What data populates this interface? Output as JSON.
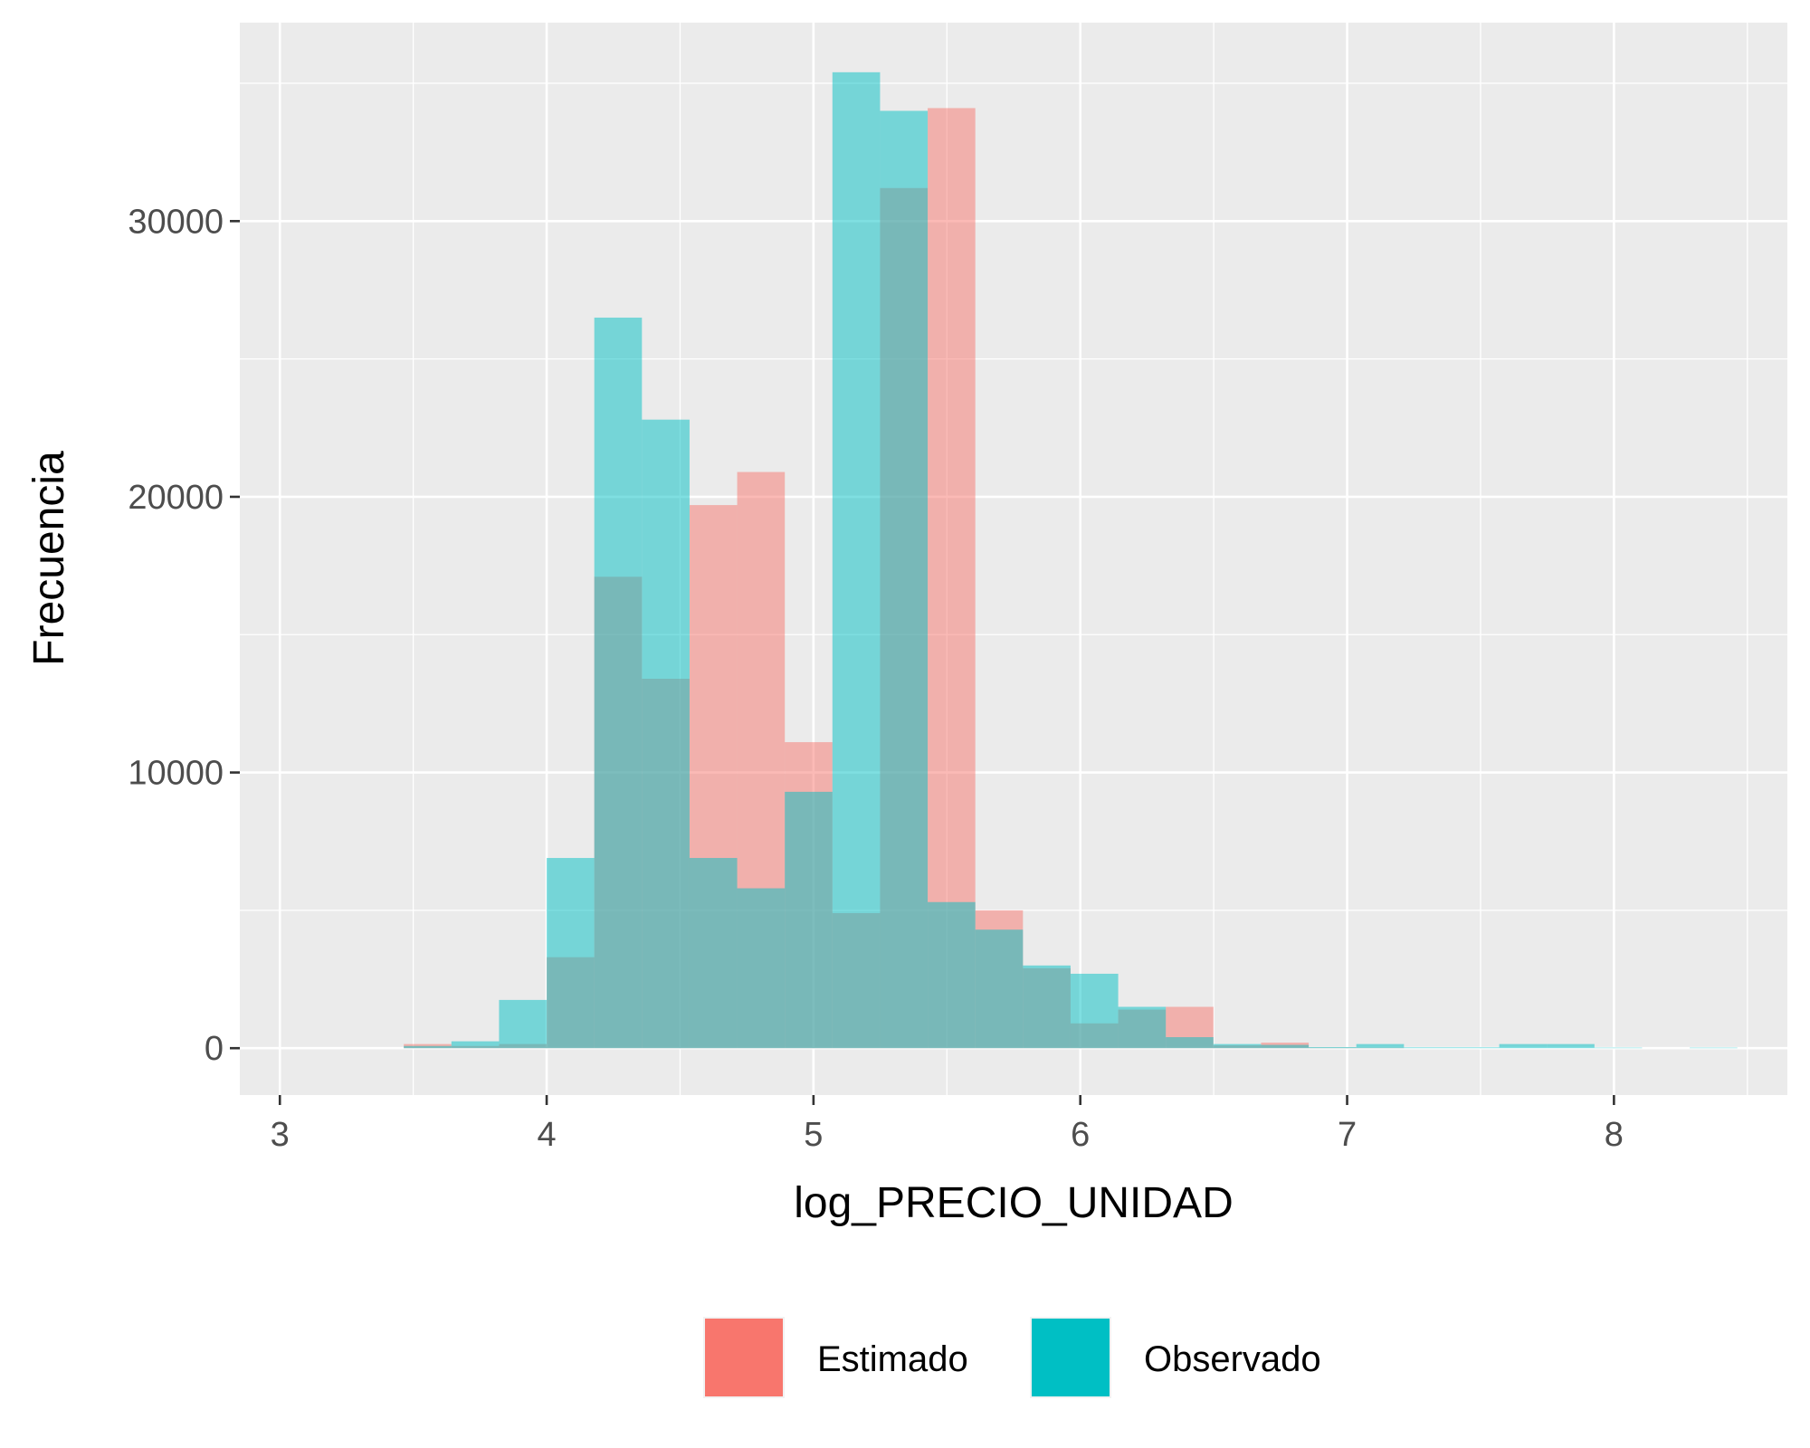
{
  "chart_data": {
    "type": "histogram",
    "xlabel": "log_PRECIO_UNIDAD",
    "ylabel": "Frecuencia",
    "xlim": [
      2.85,
      8.65
    ],
    "ylim": [
      -1700,
      37200
    ],
    "x_ticks": [
      3,
      4,
      5,
      6,
      7,
      8
    ],
    "y_ticks": [
      0,
      10000,
      20000,
      30000
    ],
    "x_tick_labels": [
      "3",
      "4",
      "5",
      "6",
      "7",
      "8"
    ],
    "y_tick_labels": [
      "0",
      "10000",
      "20000",
      "30000"
    ],
    "grid": true,
    "legend_position": "bottom",
    "bin_width": 0.1785,
    "series": [
      {
        "name": "Estimado",
        "color": "#F8766D",
        "bins": [
          {
            "x0": 3.4645,
            "x1": 3.643,
            "y": 150
          },
          {
            "x0": 3.643,
            "x1": 3.8215,
            "y": 80
          },
          {
            "x0": 3.8215,
            "x1": 4.0,
            "y": 150
          },
          {
            "x0": 4.0,
            "x1": 4.1785,
            "y": 3300
          },
          {
            "x0": 4.1785,
            "x1": 4.357,
            "y": 17100
          },
          {
            "x0": 4.357,
            "x1": 4.5355,
            "y": 13400
          },
          {
            "x0": 4.5355,
            "x1": 4.714,
            "y": 19700
          },
          {
            "x0": 4.714,
            "x1": 4.8925,
            "y": 20900
          },
          {
            "x0": 4.8925,
            "x1": 5.071,
            "y": 11100
          },
          {
            "x0": 5.071,
            "x1": 5.2495,
            "y": 4900
          },
          {
            "x0": 5.2495,
            "x1": 5.428,
            "y": 31200
          },
          {
            "x0": 5.428,
            "x1": 5.6065,
            "y": 34100
          },
          {
            "x0": 5.6065,
            "x1": 5.785,
            "y": 5000
          },
          {
            "x0": 5.785,
            "x1": 5.9635,
            "y": 2900
          },
          {
            "x0": 5.9635,
            "x1": 6.142,
            "y": 900
          },
          {
            "x0": 6.142,
            "x1": 6.3205,
            "y": 1400
          },
          {
            "x0": 6.3205,
            "x1": 6.499,
            "y": 1500
          },
          {
            "x0": 6.499,
            "x1": 6.6775,
            "y": 100
          },
          {
            "x0": 6.6775,
            "x1": 6.856,
            "y": 200
          },
          {
            "x0": 6.856,
            "x1": 7.0345,
            "y": 20
          },
          {
            "x0": 7.0345,
            "x1": 7.213,
            "y": 20
          }
        ]
      },
      {
        "name": "Observado",
        "color": "#00BFC4",
        "bins": [
          {
            "x0": 3.4645,
            "x1": 3.643,
            "y": 80
          },
          {
            "x0": 3.643,
            "x1": 3.8215,
            "y": 250
          },
          {
            "x0": 3.8215,
            "x1": 4.0,
            "y": 1750
          },
          {
            "x0": 4.0,
            "x1": 4.1785,
            "y": 6900
          },
          {
            "x0": 4.1785,
            "x1": 4.357,
            "y": 26500
          },
          {
            "x0": 4.357,
            "x1": 4.5355,
            "y": 22800
          },
          {
            "x0": 4.5355,
            "x1": 4.714,
            "y": 6900
          },
          {
            "x0": 4.714,
            "x1": 4.8925,
            "y": 5800
          },
          {
            "x0": 4.8925,
            "x1": 5.071,
            "y": 9300
          },
          {
            "x0": 5.071,
            "x1": 5.2495,
            "y": 35400
          },
          {
            "x0": 5.2495,
            "x1": 5.428,
            "y": 34000
          },
          {
            "x0": 5.428,
            "x1": 5.6065,
            "y": 5300
          },
          {
            "x0": 5.6065,
            "x1": 5.785,
            "y": 4300
          },
          {
            "x0": 5.785,
            "x1": 5.9635,
            "y": 3000
          },
          {
            "x0": 5.9635,
            "x1": 6.142,
            "y": 2700
          },
          {
            "x0": 6.142,
            "x1": 6.3205,
            "y": 1500
          },
          {
            "x0": 6.3205,
            "x1": 6.499,
            "y": 400
          },
          {
            "x0": 6.499,
            "x1": 6.6775,
            "y": 150
          },
          {
            "x0": 6.6775,
            "x1": 6.856,
            "y": 120
          },
          {
            "x0": 6.856,
            "x1": 7.0345,
            "y": 40
          },
          {
            "x0": 7.0345,
            "x1": 7.213,
            "y": 150
          },
          {
            "x0": 7.213,
            "x1": 7.3915,
            "y": 30
          },
          {
            "x0": 7.3915,
            "x1": 7.57,
            "y": 30
          },
          {
            "x0": 7.57,
            "x1": 7.7485,
            "y": 150
          },
          {
            "x0": 7.7485,
            "x1": 7.927,
            "y": 150
          },
          {
            "x0": 7.927,
            "x1": 8.1055,
            "y": 20
          },
          {
            "x0": 8.284,
            "x1": 8.4625,
            "y": 20
          }
        ]
      }
    ]
  }
}
